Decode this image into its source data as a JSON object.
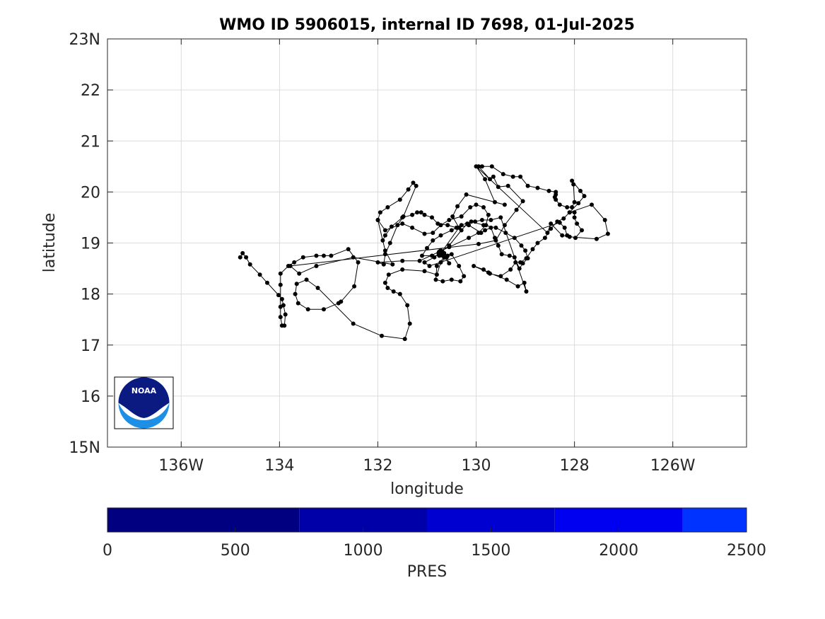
{
  "chart_data": {
    "type": "scatter",
    "title": "WMO ID 5906015, internal ID 7698, 01-Jul-2025",
    "xlabel": "longitude",
    "ylabel": "latitude",
    "xlim": [
      -137.5,
      -124.5
    ],
    "ylim": [
      15,
      23
    ],
    "grid": true,
    "x_ticks": [
      {
        "value": -136,
        "label": "136W"
      },
      {
        "value": -134,
        "label": "134"
      },
      {
        "value": -132,
        "label": "132"
      },
      {
        "value": -130,
        "label": "130"
      },
      {
        "value": -128,
        "label": "128"
      },
      {
        "value": -126,
        "label": "126W"
      }
    ],
    "y_ticks": [
      {
        "value": 15,
        "label": "15N"
      },
      {
        "value": 16,
        "label": "16"
      },
      {
        "value": 17,
        "label": "17"
      },
      {
        "value": 18,
        "label": "18"
      },
      {
        "value": 19,
        "label": "19"
      },
      {
        "value": 20,
        "label": "20"
      },
      {
        "value": 21,
        "label": "21"
      },
      {
        "value": 22,
        "label": "22"
      },
      {
        "value": 23,
        "label": "23N"
      }
    ],
    "track": [
      [
        -134.8,
        18.72
      ],
      [
        -134.75,
        18.8
      ],
      [
        -134.68,
        18.72
      ],
      [
        -134.6,
        18.58
      ],
      [
        -134.4,
        18.38
      ],
      [
        -134.25,
        18.22
      ],
      [
        -134.02,
        17.98
      ],
      [
        -133.95,
        17.9
      ],
      [
        -133.92,
        17.78
      ],
      [
        -133.88,
        17.6
      ],
      [
        -133.9,
        17.38
      ],
      [
        -133.95,
        17.38
      ],
      [
        -133.98,
        17.55
      ],
      [
        -133.98,
        17.75
      ],
      [
        -133.98,
        18.18
      ],
      [
        -133.98,
        18.4
      ],
      [
        -133.82,
        18.55
      ],
      [
        -133.7,
        18.62
      ],
      [
        -133.52,
        18.72
      ],
      [
        -133.25,
        18.75
      ],
      [
        -133.1,
        18.75
      ],
      [
        -132.95,
        18.75
      ],
      [
        -132.6,
        18.88
      ],
      [
        -132.4,
        18.62
      ],
      [
        -132.48,
        18.15
      ],
      [
        -132.75,
        17.85
      ],
      [
        -132.8,
        17.82
      ],
      [
        -133.1,
        17.7
      ],
      [
        -133.42,
        17.7
      ],
      [
        -133.62,
        17.82
      ],
      [
        -133.68,
        18.0
      ],
      [
        -133.65,
        18.2
      ],
      [
        -133.45,
        18.28
      ],
      [
        -133.22,
        18.12
      ],
      [
        -132.5,
        17.42
      ],
      [
        -131.92,
        17.18
      ],
      [
        -131.45,
        17.12
      ],
      [
        -131.35,
        17.42
      ],
      [
        -131.4,
        17.78
      ],
      [
        -131.55,
        18.0
      ],
      [
        -131.68,
        18.05
      ],
      [
        -131.8,
        18.12
      ],
      [
        -131.85,
        18.22
      ],
      [
        -131.78,
        18.38
      ],
      [
        -131.5,
        18.48
      ],
      [
        -131.05,
        18.45
      ],
      [
        -130.8,
        18.38
      ],
      [
        -130.72,
        18.62
      ],
      [
        -130.6,
        18.72
      ],
      [
        -130.55,
        18.6
      ],
      [
        -130.65,
        18.72
      ],
      [
        -130.72,
        18.85
      ],
      [
        -130.65,
        18.8
      ],
      [
        -130.58,
        18.75
      ],
      [
        -130.65,
        18.72
      ],
      [
        -130.8,
        18.55
      ],
      [
        -130.82,
        18.28
      ],
      [
        -130.68,
        18.25
      ],
      [
        -130.5,
        18.28
      ],
      [
        -130.32,
        18.25
      ],
      [
        -130.25,
        18.35
      ],
      [
        -130.35,
        18.55
      ],
      [
        -130.5,
        18.78
      ],
      [
        -130.75,
        18.75
      ],
      [
        -130.9,
        18.75
      ],
      [
        -131.1,
        18.75
      ],
      [
        -131.0,
        18.9
      ],
      [
        -130.88,
        19.05
      ],
      [
        -130.72,
        19.15
      ],
      [
        -130.5,
        19.25
      ],
      [
        -130.3,
        19.35
      ],
      [
        -130.1,
        19.42
      ],
      [
        -129.85,
        19.35
      ],
      [
        -129.6,
        19.3
      ],
      [
        -129.4,
        19.2
      ],
      [
        -129.22,
        19.1
      ],
      [
        -129.08,
        18.95
      ],
      [
        -129.0,
        18.85
      ],
      [
        -128.95,
        18.7
      ],
      [
        -129.05,
        18.6
      ],
      [
        -129.12,
        18.5
      ],
      [
        -129.22,
        18.72
      ],
      [
        -129.32,
        18.75
      ],
      [
        -129.48,
        18.78
      ],
      [
        -129.55,
        18.95
      ],
      [
        -129.62,
        19.1
      ],
      [
        -129.7,
        19.3
      ],
      [
        -129.82,
        19.25
      ],
      [
        -129.9,
        19.2
      ],
      [
        -130.15,
        19.35
      ],
      [
        -130.4,
        19.3
      ],
      [
        -130.58,
        19.35
      ],
      [
        -130.78,
        19.38
      ],
      [
        -130.9,
        19.5
      ],
      [
        -131.05,
        19.55
      ],
      [
        -131.12,
        19.6
      ],
      [
        -131.2,
        19.6
      ],
      [
        -131.3,
        19.55
      ],
      [
        -131.5,
        19.5
      ],
      [
        -131.72,
        19.32
      ],
      [
        -131.85,
        19.15
      ],
      [
        -131.9,
        19.05
      ],
      [
        -132.0,
        19.45
      ],
      [
        -131.95,
        19.6
      ],
      [
        -131.8,
        19.7
      ],
      [
        -131.55,
        19.85
      ],
      [
        -131.38,
        20.05
      ],
      [
        -131.28,
        20.18
      ],
      [
        -131.22,
        20.12
      ],
      [
        -131.48,
        19.52
      ],
      [
        -131.6,
        19.35
      ],
      [
        -131.75,
        19.0
      ],
      [
        -131.85,
        18.78
      ],
      [
        -131.88,
        18.58
      ],
      [
        -132.0,
        18.62
      ],
      [
        -131.5,
        18.65
      ],
      [
        -131.15,
        18.65
      ],
      [
        -130.55,
        18.92
      ],
      [
        -130.15,
        19.1
      ],
      [
        -129.95,
        19.2
      ],
      [
        -129.8,
        19.35
      ],
      [
        -129.75,
        19.55
      ],
      [
        -129.85,
        19.7
      ],
      [
        -130.0,
        19.75
      ],
      [
        -130.12,
        19.7
      ],
      [
        -130.3,
        19.52
      ],
      [
        -130.55,
        19.45
      ],
      [
        -130.72,
        19.35
      ],
      [
        -130.88,
        19.2
      ],
      [
        -131.05,
        19.18
      ],
      [
        -131.3,
        19.3
      ],
      [
        -131.5,
        19.38
      ],
      [
        -131.85,
        19.25
      ],
      [
        -132.0,
        19.45
      ],
      [
        -131.85,
        18.85
      ],
      [
        -131.7,
        18.58
      ],
      [
        -132.5,
        18.72
      ],
      [
        -133.25,
        18.55
      ],
      [
        -133.6,
        18.4
      ],
      [
        -133.78,
        18.55
      ],
      [
        -129.95,
        18.98
      ],
      [
        -129.6,
        19.05
      ],
      [
        -129.42,
        19.35
      ],
      [
        -129.18,
        19.65
      ],
      [
        -129.05,
        19.82
      ],
      [
        -129.35,
        20.12
      ],
      [
        -129.55,
        20.1
      ],
      [
        -129.65,
        20.3
      ],
      [
        -129.72,
        20.25
      ],
      [
        -129.95,
        20.5
      ],
      [
        -129.88,
        20.5
      ],
      [
        -129.68,
        20.5
      ],
      [
        -129.45,
        20.35
      ],
      [
        -129.25,
        20.3
      ],
      [
        -129.1,
        20.3
      ],
      [
        -128.95,
        20.12
      ],
      [
        -128.75,
        20.08
      ],
      [
        -128.52,
        20.02
      ],
      [
        -128.38,
        20.0
      ],
      [
        -128.38,
        19.95
      ],
      [
        -128.4,
        19.9
      ],
      [
        -128.38,
        19.85
      ],
      [
        -128.3,
        19.75
      ],
      [
        -128.15,
        19.7
      ],
      [
        -128.05,
        19.7
      ],
      [
        -128.0,
        19.8
      ],
      [
        -128.02,
        20.15
      ],
      [
        -128.05,
        20.22
      ],
      [
        -127.88,
        20.02
      ],
      [
        -127.8,
        19.92
      ],
      [
        -127.92,
        19.78
      ],
      [
        -128.1,
        19.6
      ],
      [
        -128.22,
        19.48
      ],
      [
        -128.35,
        19.42
      ],
      [
        -128.48,
        19.28
      ],
      [
        -128.6,
        19.1
      ],
      [
        -128.75,
        19.0
      ],
      [
        -128.85,
        18.88
      ],
      [
        -128.98,
        18.7
      ],
      [
        -129.1,
        18.62
      ],
      [
        -129.2,
        18.62
      ],
      [
        -129.3,
        18.48
      ],
      [
        -129.5,
        18.35
      ],
      [
        -129.72,
        18.4
      ],
      [
        -129.85,
        18.48
      ],
      [
        -130.05,
        18.55
      ],
      [
        -129.75,
        18.42
      ],
      [
        -129.38,
        18.28
      ],
      [
        -129.15,
        18.15
      ],
      [
        -129.02,
        18.22
      ],
      [
        -128.98,
        18.05
      ],
      [
        -129.5,
        19.5
      ],
      [
        -129.7,
        19.45
      ],
      [
        -129.88,
        19.45
      ],
      [
        -130.02,
        19.42
      ],
      [
        -130.18,
        19.38
      ],
      [
        -130.3,
        19.25
      ],
      [
        -130.55,
        18.95
      ],
      [
        -130.85,
        18.72
      ],
      [
        -131.05,
        18.62
      ],
      [
        -130.95,
        18.55
      ],
      [
        -128.3,
        19.4
      ],
      [
        -128.2,
        19.3
      ],
      [
        -128.15,
        19.15
      ],
      [
        -127.98,
        19.1
      ],
      [
        -127.85,
        19.25
      ],
      [
        -127.95,
        19.38
      ],
      [
        -128.0,
        19.5
      ],
      [
        -128.0,
        19.6
      ],
      [
        -128.1,
        19.6
      ],
      [
        -127.65,
        19.75
      ],
      [
        -127.38,
        19.45
      ],
      [
        -127.32,
        19.18
      ],
      [
        -127.55,
        19.08
      ],
      [
        -128.1,
        19.12
      ],
      [
        -128.25,
        19.15
      ],
      [
        -128.48,
        19.38
      ],
      [
        -128.55,
        19.2
      ],
      [
        -130.0,
        20.5
      ],
      [
        -129.82,
        20.25
      ],
      [
        -129.62,
        19.8
      ],
      [
        -129.42,
        19.75
      ],
      [
        -130.2,
        19.95
      ],
      [
        -130.38,
        19.72
      ],
      [
        -130.48,
        19.52
      ],
      [
        -130.35,
        19.3
      ],
      [
        -130.72,
        18.8
      ]
    ],
    "colorbar": {
      "label": "PRES",
      "range": [
        0,
        2500
      ],
      "ticks": [
        {
          "value": 0,
          "label": "0"
        },
        {
          "value": 500,
          "label": "500"
        },
        {
          "value": 1000,
          "label": "1000"
        },
        {
          "value": 1500,
          "label": "1500"
        },
        {
          "value": 2000,
          "label": "2000"
        },
        {
          "value": 2500,
          "label": "2500"
        }
      ],
      "bands": [
        {
          "from": 0,
          "to": 750,
          "color": "#000080"
        },
        {
          "from": 750,
          "to": 1250,
          "color": "#0000a8"
        },
        {
          "from": 1250,
          "to": 1750,
          "color": "#0000d0"
        },
        {
          "from": 1750,
          "to": 2250,
          "color": "#0000f0"
        },
        {
          "from": 2250,
          "to": 2500,
          "color": "#0033ff"
        }
      ]
    }
  },
  "logo": {
    "text": "NOAA"
  }
}
